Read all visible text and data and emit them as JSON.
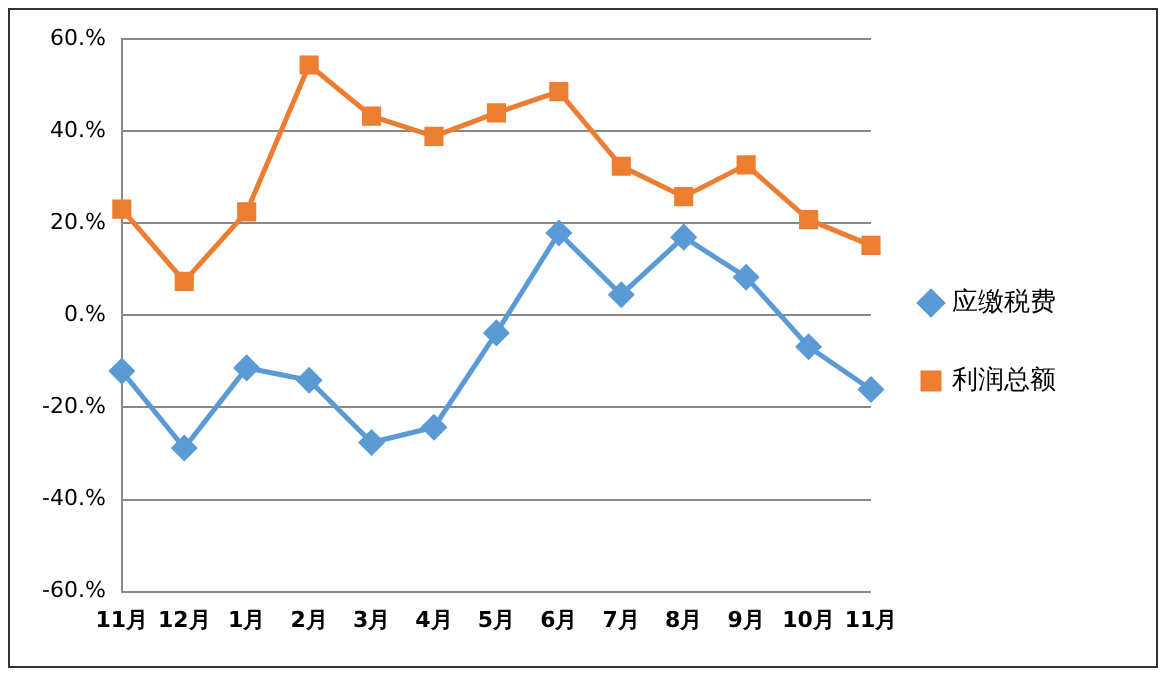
{
  "chart_data": {
    "type": "line",
    "categories": [
      "11月",
      "12月",
      "1月",
      "2月",
      "3月",
      "4月",
      "5月",
      "6月",
      "7月",
      "8月",
      "9月",
      "10月",
      "11月"
    ],
    "series": [
      {
        "name": "应缴税费",
        "color": "#5b9bd5",
        "marker": "diamond",
        "values": [
          -12.1,
          -28.8,
          -11.4,
          -14.1,
          -27.6,
          -24.3,
          -3.8,
          17.9,
          4.5,
          17.0,
          8.3,
          -6.8,
          -16.1
        ]
      },
      {
        "name": "利润总额",
        "color": "#ed7d31",
        "marker": "square",
        "values": [
          23.1,
          7.4,
          22.5,
          54.4,
          43.3,
          38.9,
          44.0,
          48.6,
          32.4,
          25.8,
          32.7,
          20.8,
          15.2
        ]
      }
    ],
    "ylim": [
      -60,
      60
    ],
    "yticks": [
      {
        "value": -60,
        "label": "-60.%"
      },
      {
        "value": -40,
        "label": "-40.%"
      },
      {
        "value": -20,
        "label": "-20.%"
      },
      {
        "value": 0,
        "label": "0.%"
      },
      {
        "value": 20,
        "label": "20.%"
      },
      {
        "value": 40,
        "label": "40.%"
      },
      {
        "value": 60,
        "label": "60.%"
      }
    ],
    "grid": "y",
    "legend": "right",
    "line_style": "solid"
  }
}
